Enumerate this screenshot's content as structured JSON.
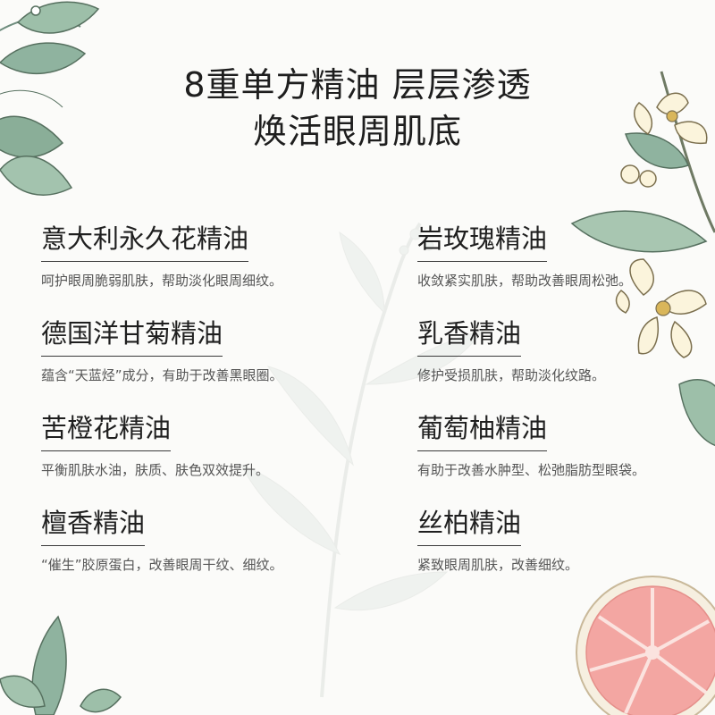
{
  "header": {
    "title_line1": "8重单方精油 层层渗透",
    "title_line2": "焕活眼周肌底"
  },
  "oils": [
    {
      "name": "意大利永久花精油",
      "desc": "呵护眼周脆弱肌肤，帮助淡化眼周细纹。"
    },
    {
      "name": "岩玫瑰精油",
      "desc": "收敛紧实肌肤，帮助改善眼周松弛。"
    },
    {
      "name": "德国洋甘菊精油",
      "desc": "蕴含“天蓝烃”成分，有助于改善黑眼圈。"
    },
    {
      "name": "乳香精油",
      "desc": "修护受损肌肤，帮助淡化纹路。"
    },
    {
      "name": "苦橙花精油",
      "desc": "平衡肌肤水油，肤质、肤色双效提升。"
    },
    {
      "name": "葡萄柚精油",
      "desc": "有助于改善水肿型、松弛脂肪型眼袋。"
    },
    {
      "name": "檀香精油",
      "desc": "“催生”胶原蛋白，改善眼周干纹、细纹。"
    },
    {
      "name": "丝柏精油",
      "desc": "紧致眼周肌肤，改善细纹。"
    }
  ],
  "decorations": {
    "icons": [
      "leaf-cluster-icon",
      "orange-blossom-icon",
      "grapefruit-slice-icon",
      "faded-branch-icon"
    ],
    "leaf_color": "#8fb39f",
    "petal_color": "#fbf4dc",
    "grapefruit_color": "#f3a6a2"
  }
}
